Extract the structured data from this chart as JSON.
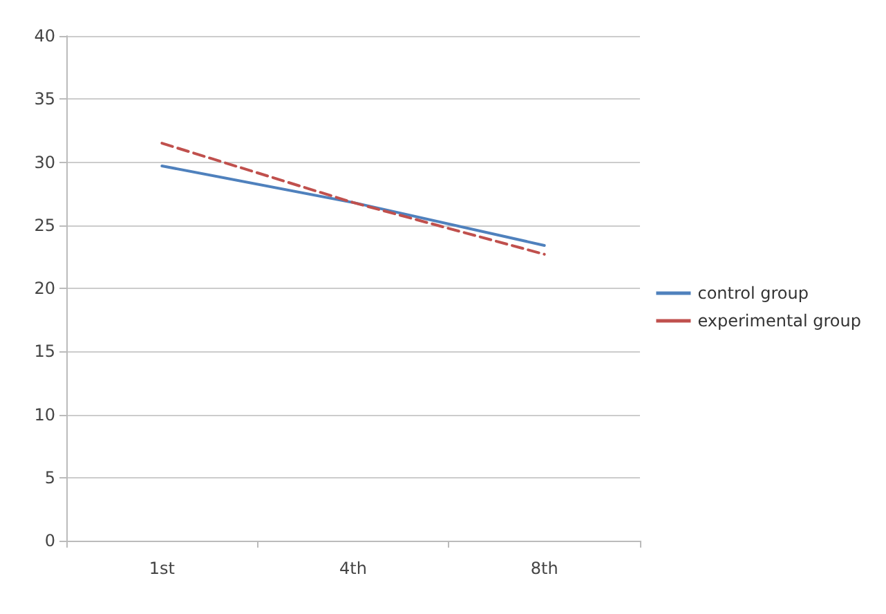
{
  "chart_data": {
    "type": "line",
    "categories": [
      "1st",
      "4th",
      "8th"
    ],
    "series": [
      {
        "name": "control group",
        "color": "#4f81bd",
        "values": [
          29.7,
          26.8,
          23.4
        ],
        "line_style": "solid"
      },
      {
        "name": "experimental group",
        "color": "#c0504d",
        "values": [
          31.5,
          26.8,
          22.7
        ],
        "line_style": "dashed"
      }
    ],
    "ylim": [
      0,
      40
    ],
    "yticks": [
      0,
      5,
      10,
      15,
      20,
      25,
      30,
      35,
      40
    ],
    "grid": "y",
    "legend": "right"
  }
}
